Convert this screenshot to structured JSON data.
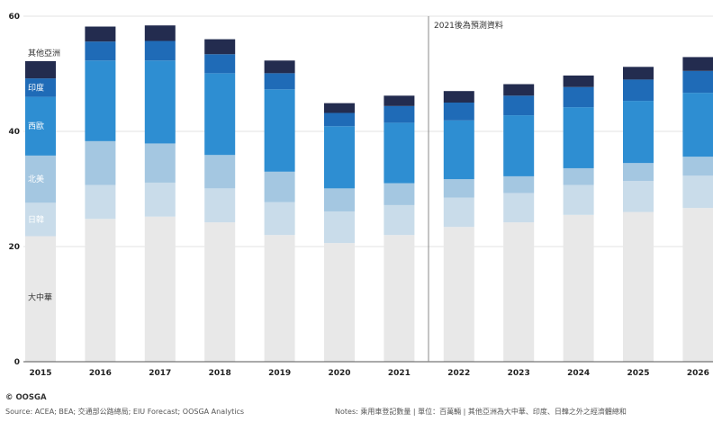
{
  "chart_data": {
    "type": "bar",
    "stacked": true,
    "categories": [
      "2015",
      "2016",
      "2017",
      "2018",
      "2019",
      "2020",
      "2021",
      "2022",
      "2023",
      "2024",
      "2025",
      "2026"
    ],
    "series": [
      {
        "name": "大中華",
        "color": "#e8e8e8",
        "values": [
          21.8,
          24.8,
          25.2,
          24.2,
          22.0,
          20.6,
          22.0,
          23.4,
          24.2,
          25.5,
          26.0,
          26.7
        ]
      },
      {
        "name": "日韓",
        "color": "#c9dcea",
        "values": [
          5.8,
          5.9,
          5.9,
          5.9,
          5.7,
          5.5,
          5.2,
          5.1,
          5.1,
          5.2,
          5.4,
          5.6
        ]
      },
      {
        "name": "北美",
        "color": "#a4c7e1",
        "values": [
          8.2,
          7.6,
          6.8,
          5.8,
          5.3,
          4.0,
          3.8,
          3.2,
          2.9,
          2.9,
          3.1,
          3.3
        ]
      },
      {
        "name": "西歐",
        "color": "#2e8ed2",
        "values": [
          10.2,
          14.0,
          14.4,
          14.2,
          14.3,
          10.8,
          10.5,
          10.2,
          10.6,
          10.6,
          10.8,
          11.1
        ]
      },
      {
        "name": "印度",
        "color": "#1f6bb7",
        "values": [
          3.2,
          3.3,
          3.4,
          3.3,
          2.8,
          2.3,
          2.9,
          3.1,
          3.4,
          3.5,
          3.7,
          3.8
        ]
      },
      {
        "name": "其他亞洲",
        "color": "#232c4f",
        "values": [
          3.0,
          2.6,
          2.7,
          2.6,
          2.2,
          1.7,
          1.8,
          2.0,
          2.0,
          2.0,
          2.2,
          2.4
        ]
      }
    ],
    "ylim": [
      0,
      60
    ],
    "yticks": [
      "0",
      "20",
      "40",
      "60"
    ],
    "grid": true,
    "forecast_annotation": "2021後為預測資料"
  },
  "footer": {
    "brand": "© OOSGA",
    "source": "Source:  ACEA; BEA; 交通部公路總局; EIU Forecast; OOSGA Analytics",
    "notes": "Notes: 乘用車登記數量 | 單位：百萬輛 | 其他亞洲為大中華、印度、日韓之外之經濟體總和"
  }
}
